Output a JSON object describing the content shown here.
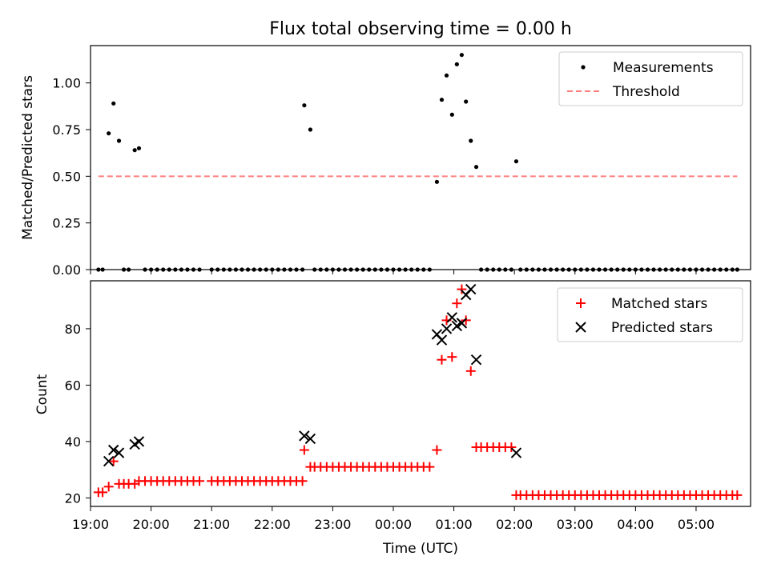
{
  "figure": {
    "title": "Flux total observing time = 0.00 h"
  },
  "chart_data": [
    {
      "type": "scatter",
      "title": "Flux total observing time = 0.00 h",
      "xlabel": "",
      "ylabel": "Matched/Predicted stars",
      "xlim": [
        19.0,
        5.9
      ],
      "xlim_hours": [
        19.0,
        29.9
      ],
      "ylim": [
        0,
        1.2
      ],
      "yticks": [
        0,
        0.25,
        0.5,
        0.75,
        1.0
      ],
      "ytick_labels": [
        "0.00",
        "0.25",
        "0.50",
        "0.75",
        "1.00"
      ],
      "xticks_hours": [
        19,
        20,
        21,
        22,
        23,
        24,
        25,
        26,
        27,
        28,
        29
      ],
      "legend": {
        "position": "top-right",
        "entries": [
          {
            "label": "Measurements",
            "color": "#000000",
            "marker": "dot"
          },
          {
            "label": "Threshold",
            "color": "#ff7f7f",
            "marker": "dashed-line"
          }
        ]
      },
      "threshold": {
        "value": 0.5,
        "x_range_hours": [
          19.13,
          29.68
        ],
        "color": "#ff7f7f"
      },
      "measurements": {
        "x_hours": [
          19.13,
          19.2,
          19.3,
          19.38,
          19.47,
          19.55,
          19.63,
          19.73,
          19.8,
          19.9,
          20.0,
          20.1,
          20.2,
          20.3,
          20.4,
          20.5,
          20.6,
          20.7,
          20.8,
          21.0,
          21.1,
          21.2,
          21.3,
          21.4,
          21.5,
          21.6,
          21.7,
          21.8,
          21.9,
          22.0,
          22.1,
          22.2,
          22.3,
          22.4,
          22.5,
          22.53,
          22.63,
          22.7,
          22.8,
          22.9,
          23.0,
          23.1,
          23.2,
          23.3,
          23.4,
          23.5,
          23.6,
          23.7,
          23.8,
          23.9,
          24.0,
          24.1,
          24.2,
          24.3,
          24.4,
          24.5,
          24.6,
          24.72,
          24.8,
          24.88,
          24.97,
          25.05,
          25.13,
          25.2,
          25.28,
          25.37,
          25.45,
          25.55,
          25.65,
          25.75,
          25.85,
          25.95,
          26.03,
          26.1,
          26.2,
          26.3,
          26.4,
          26.5,
          26.6,
          26.7,
          26.8,
          26.9,
          27.0,
          27.1,
          27.2,
          27.3,
          27.4,
          27.5,
          27.6,
          27.7,
          27.8,
          27.9,
          28.0,
          28.1,
          28.2,
          28.3,
          28.4,
          28.5,
          28.6,
          28.7,
          28.8,
          28.9,
          29.0,
          29.1,
          29.2,
          29.3,
          29.4,
          29.5,
          29.6,
          29.68
        ],
        "y": [
          0,
          0,
          0.73,
          0.89,
          0.69,
          0,
          0,
          0.64,
          0.65,
          0,
          0,
          0,
          0,
          0,
          0,
          0,
          0,
          0,
          0,
          0,
          0,
          0,
          0,
          0,
          0,
          0,
          0,
          0,
          0,
          0,
          0,
          0,
          0,
          0,
          0,
          0.88,
          0.75,
          0,
          0,
          0,
          0,
          0,
          0,
          0,
          0,
          0,
          0,
          0,
          0,
          0,
          0,
          0,
          0,
          0,
          0,
          0,
          0,
          0.47,
          0.91,
          1.04,
          0.83,
          1.1,
          1.15,
          0.9,
          0.69,
          0.55,
          0,
          0,
          0,
          0,
          0,
          0,
          0.58,
          0,
          0,
          0,
          0,
          0,
          0,
          0,
          0,
          0,
          0,
          0,
          0,
          0,
          0,
          0,
          0,
          0,
          0,
          0,
          0,
          0,
          0,
          0,
          0,
          0,
          0,
          0,
          0,
          0,
          0,
          0,
          0,
          0,
          0,
          0,
          0,
          0
        ]
      }
    },
    {
      "type": "scatter",
      "title": "",
      "xlabel": "Time (UTC)",
      "ylabel": "Count",
      "ylim": [
        17,
        97
      ],
      "yticks": [
        20,
        40,
        60,
        80
      ],
      "ytick_labels": [
        "20",
        "40",
        "60",
        "80"
      ],
      "xticks_hours": [
        19,
        20,
        21,
        22,
        23,
        24,
        25,
        26,
        27,
        28,
        29
      ],
      "xtick_labels": [
        "19:00",
        "20:00",
        "21:00",
        "22:00",
        "23:00",
        "00:00",
        "01:00",
        "02:00",
        "03:00",
        "04:00",
        "05:00"
      ],
      "legend": {
        "position": "top-right",
        "entries": [
          {
            "label": "Matched stars",
            "color": "#ff0000",
            "marker": "plus"
          },
          {
            "label": "Predicted stars",
            "color": "#000000",
            "marker": "x"
          }
        ]
      },
      "series": [
        {
          "name": "Matched stars",
          "color": "#ff0000",
          "x_hours": [
            19.13,
            19.2,
            19.3,
            19.38,
            19.47,
            19.55,
            19.63,
            19.73,
            19.8,
            19.9,
            20.0,
            20.1,
            20.2,
            20.3,
            20.4,
            20.5,
            20.6,
            20.7,
            20.8,
            21.0,
            21.1,
            21.2,
            21.3,
            21.4,
            21.5,
            21.6,
            21.7,
            21.8,
            21.9,
            22.0,
            22.1,
            22.2,
            22.3,
            22.4,
            22.5,
            22.53,
            22.63,
            22.7,
            22.8,
            22.9,
            23.0,
            23.1,
            23.2,
            23.3,
            23.4,
            23.5,
            23.6,
            23.7,
            23.8,
            23.9,
            24.0,
            24.1,
            24.2,
            24.3,
            24.4,
            24.5,
            24.6,
            24.72,
            24.8,
            24.88,
            24.97,
            25.05,
            25.13,
            25.2,
            25.28,
            25.37,
            25.45,
            25.55,
            25.65,
            25.75,
            25.85,
            25.95,
            26.03,
            26.1,
            26.2,
            26.3,
            26.4,
            26.5,
            26.6,
            26.7,
            26.8,
            26.9,
            27.0,
            27.1,
            27.2,
            27.3,
            27.4,
            27.5,
            27.6,
            27.7,
            27.8,
            27.9,
            28.0,
            28.1,
            28.2,
            28.3,
            28.4,
            28.5,
            28.6,
            28.7,
            28.8,
            28.9,
            29.0,
            29.1,
            29.2,
            29.3,
            29.4,
            29.5,
            29.6,
            29.68
          ],
          "y": [
            22,
            22,
            24,
            33,
            25,
            25,
            25,
            25,
            26,
            26,
            26,
            26,
            26,
            26,
            26,
            26,
            26,
            26,
            26,
            26,
            26,
            26,
            26,
            26,
            26,
            26,
            26,
            26,
            26,
            26,
            26,
            26,
            26,
            26,
            26,
            37,
            31,
            31,
            31,
            31,
            31,
            31,
            31,
            31,
            31,
            31,
            31,
            31,
            31,
            31,
            31,
            31,
            31,
            31,
            31,
            31,
            31,
            37,
            69,
            83,
            70,
            89,
            94,
            83,
            65,
            38,
            38,
            38,
            38,
            38,
            38,
            38,
            21,
            21,
            21,
            21,
            21,
            21,
            21,
            21,
            21,
            21,
            21,
            21,
            21,
            21,
            21,
            21,
            21,
            21,
            21,
            21,
            21,
            21,
            21,
            21,
            21,
            21,
            21,
            21,
            21,
            21,
            21,
            21,
            21,
            21,
            21,
            21,
            21,
            21
          ]
        },
        {
          "name": "Predicted stars",
          "color": "#000000",
          "x_hours": [
            19.3,
            19.38,
            19.47,
            19.73,
            19.8,
            22.53,
            22.63,
            24.72,
            24.8,
            24.88,
            24.97,
            25.05,
            25.13,
            25.2,
            25.28,
            25.37,
            26.03
          ],
          "y": [
            33,
            37,
            36,
            39,
            40,
            42,
            41,
            78,
            76,
            80,
            84,
            81,
            82,
            92,
            94,
            69,
            36
          ]
        }
      ]
    }
  ]
}
